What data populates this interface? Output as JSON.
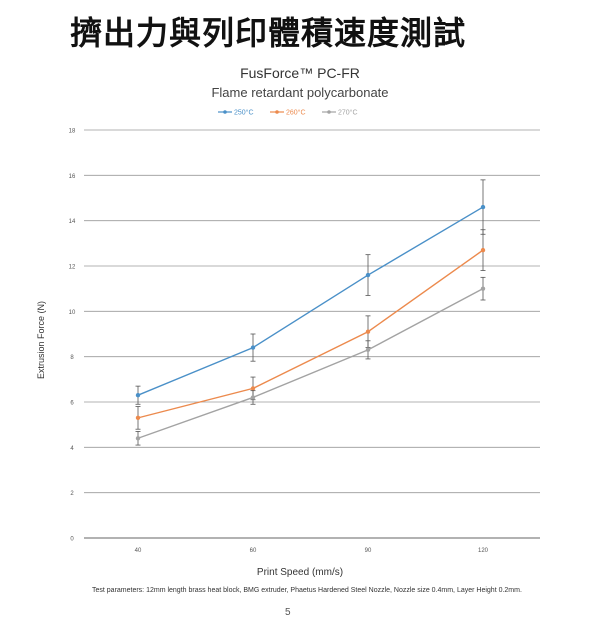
{
  "page": {
    "title": "擠出力與列印體積速度測試",
    "footnote": "Test parameters: 12mm length brass heat block, BMG extruder, Phaetus Hardened Steel Nozzle, Nozzle size 0.4mm, Layer Height 0.2mm.",
    "page_number": "5"
  },
  "chart_data": {
    "type": "line",
    "title": "FusForce™ PC-FR",
    "subtitle": "Flame retardant polycarbonate",
    "xlabel": "Print Speed (mm/s)",
    "ylabel": "Extrusion Force (N)",
    "categories": [
      "40",
      "60",
      "90",
      "120"
    ],
    "ylim": [
      0,
      18
    ],
    "yticks": [
      0,
      2,
      4,
      6,
      8,
      10,
      12,
      14,
      16,
      18
    ],
    "grid": true,
    "legend_position": "top-center",
    "series": [
      {
        "name": "250°C",
        "color": "#4a90c8",
        "values": [
          6.3,
          8.4,
          11.6,
          14.6
        ],
        "error": [
          0.4,
          0.6,
          0.9,
          1.2
        ]
      },
      {
        "name": "260°C",
        "color": "#ec8a4d",
        "values": [
          5.3,
          6.6,
          9.1,
          12.7
        ],
        "error": [
          0.5,
          0.5,
          0.7,
          0.9
        ]
      },
      {
        "name": "270°C",
        "color": "#a3a3a3",
        "values": [
          4.4,
          6.2,
          8.3,
          11.0
        ],
        "error": [
          0.3,
          0.3,
          0.4,
          0.5
        ]
      }
    ]
  }
}
